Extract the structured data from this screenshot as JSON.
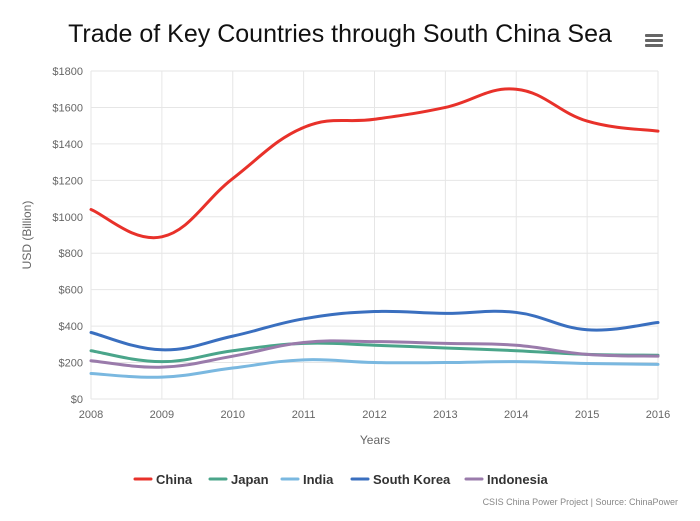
{
  "title": "Trade of Key Countries through South China Sea",
  "menu_icon": "hamburger-menu-icon",
  "credits": "CSIS China Power Project | Source: ChinaPower",
  "chart_data": {
    "type": "line",
    "title": "Trade of Key Countries through South China Sea",
    "xlabel": "Years",
    "ylabel": "USD (Billion)",
    "x": [
      2008,
      2009,
      2010,
      2011,
      2012,
      2013,
      2014,
      2015,
      2016
    ],
    "ylim": [
      0,
      1800
    ],
    "yticks": [
      0,
      200,
      400,
      600,
      800,
      1000,
      1200,
      1400,
      1600,
      1800
    ],
    "ytick_labels": [
      "$0",
      "$200",
      "$400",
      "$600",
      "$800",
      "$1000",
      "$1200",
      "$1400",
      "$1600",
      "$1800"
    ],
    "grid": true,
    "legend": "bottom",
    "series": [
      {
        "name": "China",
        "color": "#e8312a",
        "values": [
          1040,
          890,
          1210,
          1490,
          1535,
          1600,
          1700,
          1525,
          1470
        ]
      },
      {
        "name": "Japan",
        "color": "#4aa58a",
        "values": [
          265,
          205,
          265,
          305,
          295,
          280,
          265,
          245,
          240
        ]
      },
      {
        "name": "India",
        "color": "#7ab8e0",
        "values": [
          140,
          120,
          170,
          215,
          200,
          200,
          205,
          195,
          190
        ]
      },
      {
        "name": "South Korea",
        "color": "#3a6fbf",
        "values": [
          365,
          270,
          345,
          440,
          480,
          470,
          475,
          380,
          420
        ]
      },
      {
        "name": "Indonesia",
        "color": "#9a7bab",
        "values": [
          210,
          175,
          235,
          310,
          315,
          305,
          295,
          245,
          235
        ]
      }
    ]
  }
}
